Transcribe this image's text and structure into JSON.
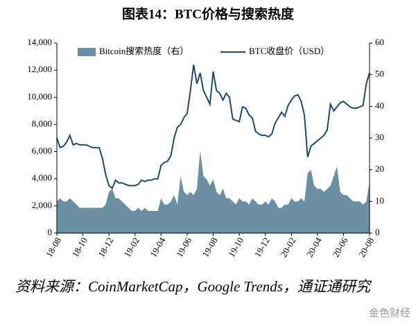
{
  "chart_data": {
    "type": "combo",
    "title": "图表14：BTC价格与搜索热度",
    "source": "资料来源：CoinMarketCap，Google Trends，通证通研究",
    "logo": "金色财经",
    "categories": [
      "18-08",
      null,
      null,
      null,
      null,
      null,
      null,
      null,
      "18-10",
      null,
      null,
      null,
      null,
      null,
      null,
      null,
      "18-12",
      null,
      null,
      null,
      null,
      null,
      null,
      null,
      "19-02",
      null,
      null,
      null,
      null,
      null,
      null,
      null,
      "19-04",
      null,
      null,
      null,
      null,
      null,
      null,
      null,
      "19-06",
      null,
      null,
      null,
      null,
      null,
      null,
      null,
      "19-08",
      null,
      null,
      null,
      null,
      null,
      null,
      null,
      "19-10",
      null,
      null,
      null,
      null,
      null,
      null,
      null,
      "19-12",
      null,
      null,
      null,
      null,
      null,
      null,
      null,
      "20-02",
      null,
      null,
      null,
      null,
      null,
      null,
      null,
      "20-04",
      null,
      null,
      null,
      null,
      null,
      null,
      null,
      "20-06",
      null,
      null,
      null,
      null,
      null,
      null,
      null,
      "20-08"
    ],
    "series": [
      {
        "name": "Bitcoin搜索热度（右）",
        "type": "area",
        "axis": "y2",
        "color": "#6b8fa3",
        "values": [
          10,
          11,
          10,
          10,
          11,
          10,
          9,
          8,
          8,
          8,
          8,
          8,
          8,
          8,
          8,
          9,
          13,
          14,
          11,
          11,
          10,
          9,
          8,
          7,
          7,
          8,
          7,
          8,
          7,
          7,
          7,
          7,
          11,
          9,
          9,
          10,
          12,
          9,
          18,
          13,
          12,
          13,
          12,
          14,
          26,
          18,
          17,
          15,
          17,
          13,
          12,
          14,
          11,
          11,
          10,
          9,
          11,
          10,
          10,
          9,
          11,
          10,
          9,
          9,
          10,
          9,
          11,
          10,
          8,
          8,
          9,
          9,
          11,
          10,
          10,
          11,
          10,
          19,
          20,
          15,
          14,
          14,
          13,
          14,
          15,
          18,
          21,
          13,
          12,
          12,
          11,
          10,
          10,
          10,
          9,
          10,
          16
        ]
      },
      {
        "name": "BTC收盘价（USD）",
        "type": "line",
        "color": "#1b4a6b",
        "values": [
          7000,
          6300,
          6400,
          6700,
          7200,
          6500,
          6600,
          6500,
          6500,
          6500,
          6400,
          6300,
          6300,
          6300,
          5500,
          4300,
          3500,
          3300,
          3900,
          3700,
          3700,
          3600,
          3500,
          3500,
          3500,
          3600,
          3900,
          3800,
          3900,
          3900,
          4000,
          4000,
          5000,
          5200,
          5300,
          5700,
          7000,
          7800,
          8000,
          8500,
          8800,
          10500,
          12400,
          11000,
          11800,
          10500,
          10000,
          9500,
          11900,
          10500,
          10300,
          9800,
          10300,
          10000,
          8400,
          8300,
          8200,
          9300,
          9200,
          8700,
          8500,
          7500,
          7300,
          7200,
          7200,
          7100,
          7300,
          8100,
          8500,
          8900,
          8600,
          9400,
          9800,
          10100,
          10200,
          9700,
          8700,
          5600,
          6400,
          6600,
          6800,
          7000,
          7200,
          7600,
          9500,
          9000,
          9300,
          9600,
          9700,
          9500,
          9300,
          9200,
          9200,
          9300,
          9400,
          11000,
          11800
        ]
      }
    ],
    "ylim": [
      0,
      14000
    ],
    "yticks": [
      {
        "value": 0,
        "label": "0"
      },
      {
        "value": 2000,
        "label": "2,000"
      },
      {
        "value": 4000,
        "label": "4,000"
      },
      {
        "value": 6000,
        "label": "6,000"
      },
      {
        "value": 8000,
        "label": "8,000"
      },
      {
        "value": 10000,
        "label": "10,000"
      },
      {
        "value": 12000,
        "label": "12,000"
      },
      {
        "value": 14000,
        "label": "14,000"
      }
    ],
    "y2lim": [
      0,
      60
    ],
    "y2ticks": [
      0,
      10,
      20,
      30,
      40,
      50,
      60
    ]
  }
}
